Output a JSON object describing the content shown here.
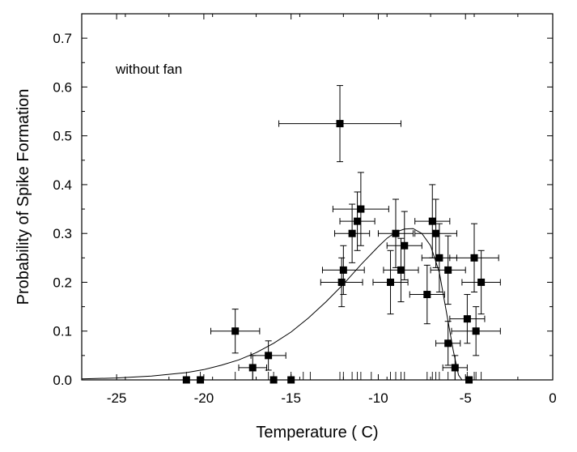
{
  "chart_data": {
    "type": "scatter",
    "title": "",
    "xlabel": "Temperature ( C)",
    "ylabel": "Probability of Spike Formation",
    "annotation": "without fan",
    "xlim": [
      -27,
      0
    ],
    "ylim": [
      0.0,
      0.75
    ],
    "xticks": [
      -25,
      -20,
      -15,
      -10,
      -5,
      0
    ],
    "xtick_labels": [
      "-25",
      "-20",
      "-15",
      "-10",
      "-5",
      "0"
    ],
    "yticks": [
      0.0,
      0.1,
      0.2,
      0.3,
      0.4,
      0.5,
      0.6,
      0.7
    ],
    "ytick_labels": [
      "0.0",
      "0.1",
      "0.2",
      "0.3",
      "0.4",
      "0.5",
      "0.6",
      "0.7"
    ],
    "grid": false,
    "legend": "none",
    "marker_color": "#000000",
    "points": [
      {
        "x": -12.2,
        "y": 0.525,
        "xerr": 3.5,
        "yerr": 0.078
      },
      {
        "x": -18.2,
        "y": 0.1,
        "xerr": 1.4,
        "yerr": 0.045
      },
      {
        "x": -17.2,
        "y": 0.025,
        "xerr": 0.8,
        "yerr": 0.025
      },
      {
        "x": -16.3,
        "y": 0.05,
        "xerr": 1.0,
        "yerr": 0.03
      },
      {
        "x": -16.0,
        "y": 0.0,
        "xerr": 0,
        "yerr": 0
      },
      {
        "x": -15.0,
        "y": 0.0,
        "xerr": 0,
        "yerr": 0
      },
      {
        "x": -21.0,
        "y": 0.0,
        "xerr": 0,
        "yerr": 0
      },
      {
        "x": -20.2,
        "y": 0.0,
        "xerr": 0,
        "yerr": 0
      },
      {
        "x": -12.1,
        "y": 0.2,
        "xerr": 1.2,
        "yerr": 0.05
      },
      {
        "x": -12.0,
        "y": 0.225,
        "xerr": 1.2,
        "yerr": 0.05
      },
      {
        "x": -11.5,
        "y": 0.3,
        "xerr": 1.0,
        "yerr": 0.06
      },
      {
        "x": -11.2,
        "y": 0.325,
        "xerr": 1.0,
        "yerr": 0.06
      },
      {
        "x": -11.0,
        "y": 0.35,
        "xerr": 1.6,
        "yerr": 0.075
      },
      {
        "x": -9.3,
        "y": 0.2,
        "xerr": 1.0,
        "yerr": 0.065
      },
      {
        "x": -9.0,
        "y": 0.3,
        "xerr": 1.0,
        "yerr": 0.07
      },
      {
        "x": -8.7,
        "y": 0.225,
        "xerr": 1.0,
        "yerr": 0.065
      },
      {
        "x": -8.5,
        "y": 0.275,
        "xerr": 1.0,
        "yerr": 0.07
      },
      {
        "x": -7.2,
        "y": 0.175,
        "xerr": 1.0,
        "yerr": 0.06
      },
      {
        "x": -6.9,
        "y": 0.325,
        "xerr": 1.0,
        "yerr": 0.075
      },
      {
        "x": -6.7,
        "y": 0.3,
        "xerr": 1.2,
        "yerr": 0.07
      },
      {
        "x": -6.5,
        "y": 0.25,
        "xerr": 1.0,
        "yerr": 0.07
      },
      {
        "x": -6.0,
        "y": 0.225,
        "xerr": 1.0,
        "yerr": 0.07
      },
      {
        "x": -6.0,
        "y": 0.075,
        "xerr": 0.7,
        "yerr": 0.045
      },
      {
        "x": -5.6,
        "y": 0.025,
        "xerr": 0.7,
        "yerr": 0.025
      },
      {
        "x": -4.9,
        "y": 0.125,
        "xerr": 1.0,
        "yerr": 0.05
      },
      {
        "x": -4.5,
        "y": 0.25,
        "xerr": 1.4,
        "yerr": 0.07
      },
      {
        "x": -4.4,
        "y": 0.1,
        "xerr": 1.4,
        "yerr": 0.05
      },
      {
        "x": -4.1,
        "y": 0.2,
        "xerr": 1.1,
        "yerr": 0.065
      },
      {
        "x": -4.8,
        "y": 0.0,
        "xerr": 0,
        "yerr": 0
      }
    ],
    "fit_curve": {
      "x": [
        -27,
        -25,
        -23,
        -21,
        -20,
        -19,
        -18,
        -17,
        -16,
        -15,
        -14,
        -13,
        -12,
        -11,
        -10,
        -9.5,
        -9,
        -8.5,
        -8,
        -7.5,
        -7,
        -6.5,
        -6,
        -5.7,
        -5.4,
        -5.2
      ],
      "y": [
        0.002,
        0.004,
        0.008,
        0.015,
        0.021,
        0.03,
        0.041,
        0.056,
        0.075,
        0.098,
        0.127,
        0.16,
        0.196,
        0.236,
        0.273,
        0.29,
        0.303,
        0.309,
        0.31,
        0.3,
        0.275,
        0.22,
        0.12,
        0.06,
        0.01,
        0.0
      ]
    },
    "minor_xticks_bottom": [
      -21,
      -20.2,
      -18.2,
      -17.2,
      -16.3,
      -16,
      -15,
      -14.3,
      -13.9,
      -12.2,
      -12,
      -11.5,
      -11.2,
      -11,
      -10.4,
      -9.3,
      -9,
      -8.7,
      -8.5,
      -7.2,
      -6.9,
      -6.7,
      -6.5,
      -6,
      -5.6,
      -4.9,
      -4.5,
      -4.4,
      -4.1
    ]
  }
}
